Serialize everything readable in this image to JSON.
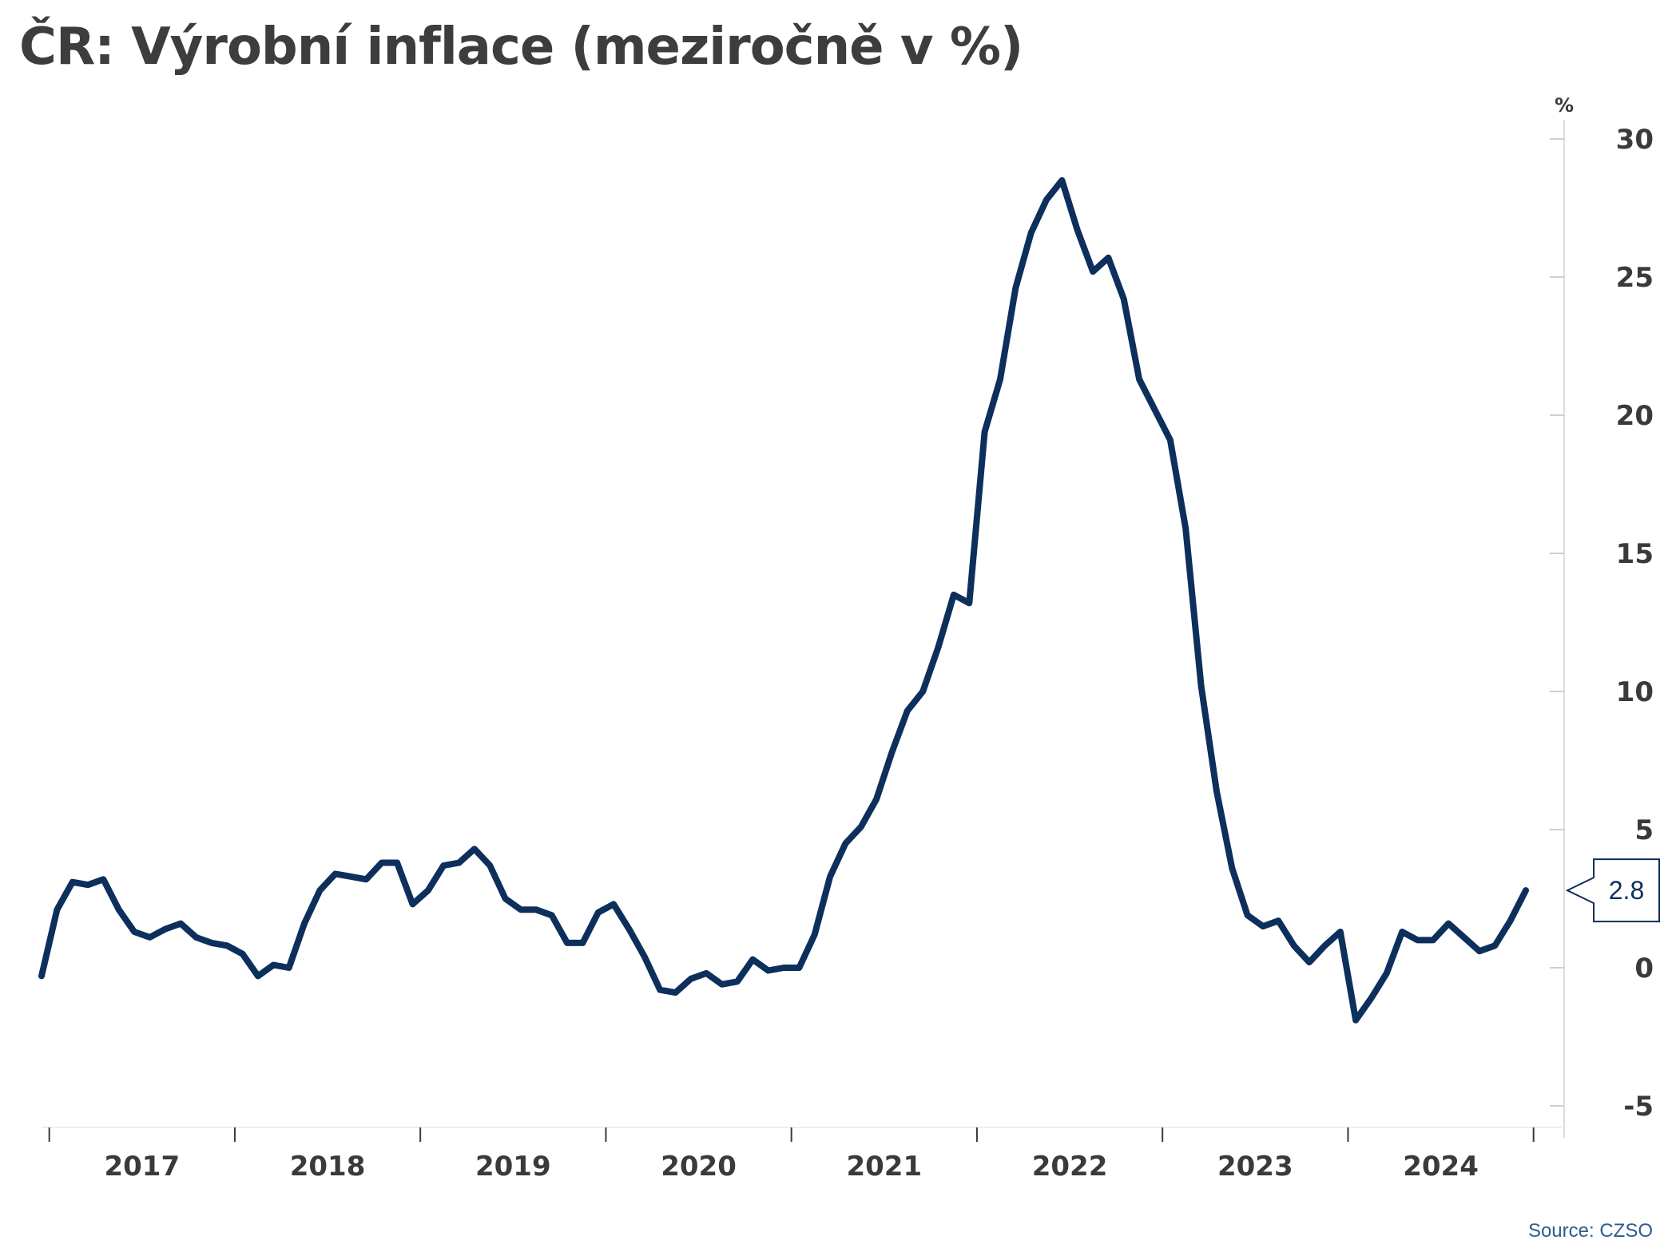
{
  "title": "ČR: Výrobní inflace (meziročně v %)",
  "source": "Source: CZSO",
  "chart_data": {
    "type": "line",
    "title": "ČR: Výrobní inflace (meziročně v %)",
    "ylabel": "%",
    "ylim": [
      -6,
      30.8
    ],
    "yticks": [
      30,
      25,
      20,
      15,
      10,
      5,
      0,
      -5
    ],
    "y_axis_position": "right",
    "grid": false,
    "x_start": "2016-12",
    "x_end": "2024-12",
    "year_labels": [
      "2017",
      "2018",
      "2019",
      "2020",
      "2021",
      "2022",
      "2023",
      "2024"
    ],
    "line_color": "#0c2f5c",
    "last_value_label": "2.8",
    "series": [
      {
        "values": [
          -0.3,
          2.1,
          3.1,
          3.0,
          3.2,
          2.1,
          1.3,
          1.1,
          1.4,
          1.6,
          1.1,
          0.9,
          0.8,
          0.5,
          -0.3,
          0.1,
          0.0,
          1.6,
          2.8,
          3.4,
          3.3,
          3.2,
          3.8,
          3.8,
          2.3,
          2.8,
          3.7,
          3.8,
          4.3,
          3.7,
          2.5,
          2.1,
          2.1,
          1.9,
          0.9,
          0.9,
          2.0,
          2.3,
          1.4,
          0.4,
          -0.8,
          -0.9,
          -0.4,
          -0.2,
          -0.6,
          -0.5,
          0.3,
          -0.1,
          0.0,
          0.0,
          1.2,
          3.3,
          4.5,
          5.1,
          6.1,
          7.8,
          9.3,
          10.0,
          11.6,
          13.5,
          13.2,
          19.4,
          21.3,
          24.6,
          26.6,
          27.8,
          28.5,
          26.7,
          25.2,
          25.7,
          24.2,
          21.3,
          20.2,
          19.1,
          15.9,
          10.2,
          6.4,
          3.6,
          1.9,
          1.5,
          1.7,
          0.8,
          0.2,
          0.8,
          1.3,
          -1.9,
          -1.1,
          -0.2,
          1.3,
          1.0,
          1.0,
          1.6,
          1.1,
          0.6,
          0.8,
          1.7,
          2.8
        ]
      }
    ]
  }
}
